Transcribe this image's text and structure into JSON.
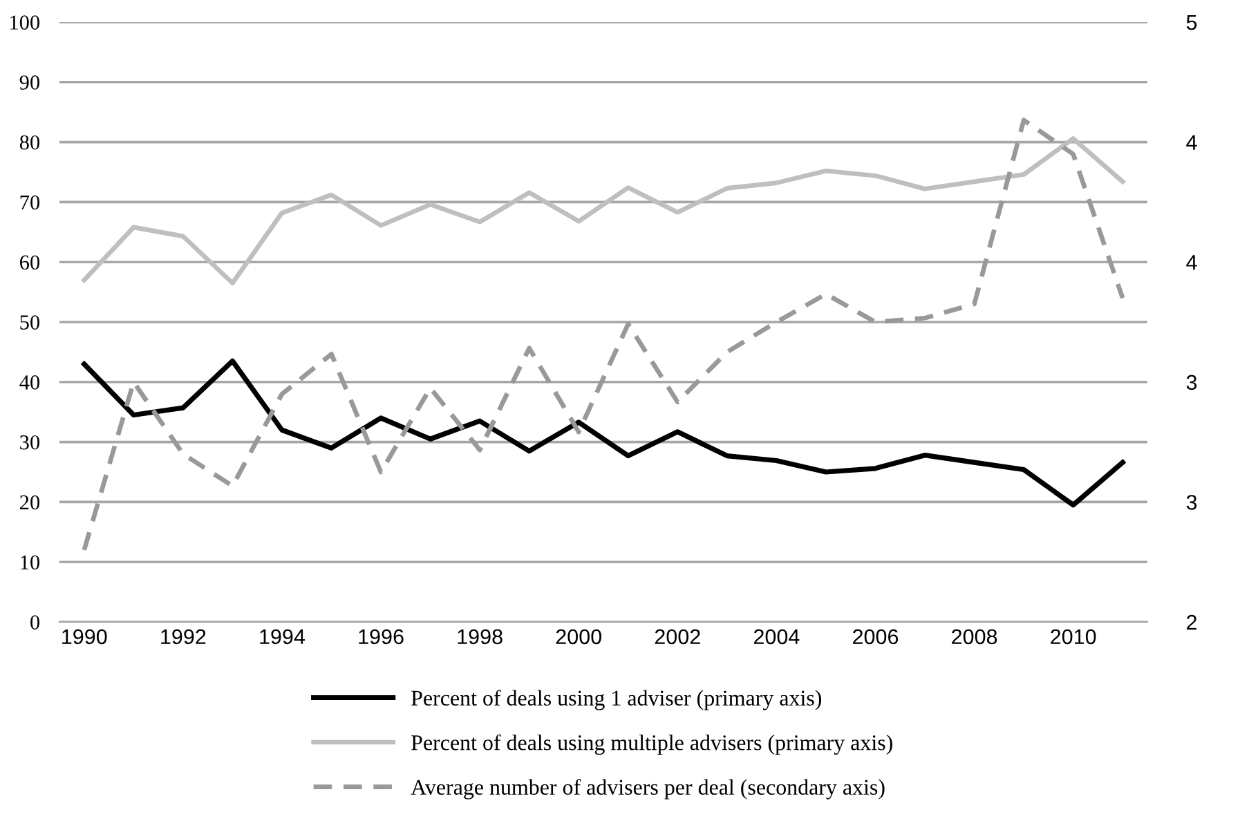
{
  "chart_data": {
    "type": "line",
    "x": [
      1990,
      1991,
      1992,
      1993,
      1994,
      1995,
      1996,
      1997,
      1998,
      1999,
      2000,
      2001,
      2002,
      2003,
      2004,
      2005,
      2006,
      2007,
      2008,
      2009,
      2010,
      2011
    ],
    "series": [
      {
        "name": "Percent of deals using 1 adviser (primary axis)",
        "color": "#000000",
        "line_style": "solid",
        "values": [
          43,
          34.5,
          35.7,
          43.5,
          32,
          29,
          34,
          30.5,
          33.5,
          28.5,
          33.3,
          27.7,
          31.7,
          27.7,
          26.9,
          25,
          25.6,
          27.8,
          26.6,
          25.4,
          19.5,
          26.6
        ]
      },
      {
        "name": "Percent of deals using multiple advisers (primary axis)",
        "color": "#bfbfbf",
        "line_style": "solid",
        "values": [
          57,
          65.8,
          64.3,
          56.5,
          68.2,
          71.2,
          66.1,
          69.6,
          66.7,
          71.6,
          66.8,
          72.4,
          68.3,
          72.3,
          73.2,
          75.2,
          74.4,
          72.2,
          73.4,
          74.6,
          80.6,
          73.4
        ]
      },
      {
        "name": "Average number of advisers per deal (secondary axis)",
        "color": "#999999",
        "line_style": "dashed",
        "axis": "y2",
        "values": [
          2.36,
          3.2,
          2.84,
          2.68,
          3.14,
          3.34,
          2.75,
          3.17,
          2.86,
          3.37,
          2.95,
          3.49,
          3.1,
          3.35,
          3.5,
          3.64,
          3.5,
          3.52,
          3.59,
          4.51,
          4.34,
          3.62
        ]
      }
    ],
    "xlim": [
      1989.5,
      2011.5
    ],
    "xticks": [
      1990,
      1992,
      1994,
      1996,
      1998,
      2000,
      2002,
      2004,
      2006,
      2008,
      2010
    ],
    "ylim": [
      0,
      100
    ],
    "yticks": [
      0,
      10,
      20,
      30,
      40,
      50,
      60,
      70,
      80,
      90,
      100
    ],
    "y2lim": [
      2,
      5
    ],
    "y2ticks": [
      {
        "value": 2,
        "label": "2"
      },
      {
        "value": 2.6,
        "label": "3"
      },
      {
        "value": 3.2,
        "label": "3"
      },
      {
        "value": 3.8,
        "label": "4"
      },
      {
        "value": 4.4,
        "label": "4"
      },
      {
        "value": 5,
        "label": "5"
      }
    ],
    "grid": "y",
    "legend": "bottom",
    "marker": "none"
  }
}
